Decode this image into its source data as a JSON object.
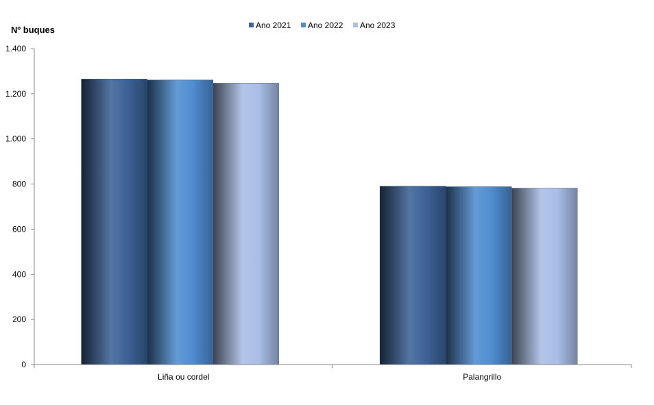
{
  "chart_data": {
    "type": "bar",
    "ylabel": "Nº  buques",
    "xlabel": "",
    "categories": [
      "Liña ou cordel",
      "Palangrillo"
    ],
    "series": [
      {
        "name": "Ano 2021",
        "values": [
          1265,
          790
        ],
        "color": "#3C6296"
      },
      {
        "name": "Ano 2022",
        "values": [
          1261,
          788
        ],
        "color": "#4F8CD0"
      },
      {
        "name": "Ano 2023",
        "values": [
          1247,
          782
        ],
        "color": "#A9BDE6"
      }
    ],
    "ylim": [
      0,
      1400
    ],
    "yticks": [
      {
        "value": 0,
        "label": "0"
      },
      {
        "value": 200,
        "label": "200"
      },
      {
        "value": 400,
        "label": "400"
      },
      {
        "value": 600,
        "label": "600"
      },
      {
        "value": 800,
        "label": "800"
      },
      {
        "value": 1000,
        "label": "1.000"
      },
      {
        "value": 1200,
        "label": "1.200"
      },
      {
        "value": 1400,
        "label": "1.400"
      }
    ],
    "grid": false,
    "legend_position": "top"
  }
}
